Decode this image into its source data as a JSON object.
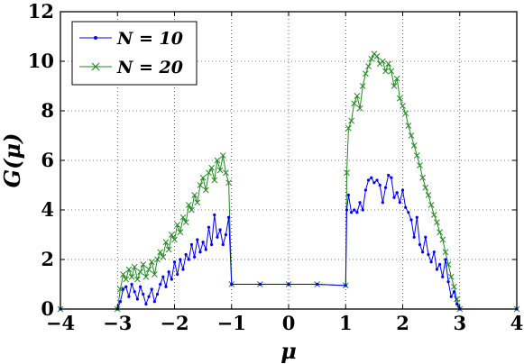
{
  "chart_data": {
    "type": "line",
    "xlabel": "μ",
    "ylabel": "G(μ)",
    "xlim": [
      -4,
      4
    ],
    "ylim": [
      0,
      12
    ],
    "xticks": [
      -4,
      -3,
      -2,
      -1,
      0,
      1,
      2,
      3,
      4
    ],
    "xtick_labels": [
      "−4",
      "−3",
      "−2",
      "−1",
      "0",
      "1",
      "2",
      "3",
      "4"
    ],
    "yticks": [
      0,
      2,
      4,
      6,
      8,
      10,
      12
    ],
    "ytick_labels": [
      "0",
      "2",
      "4",
      "6",
      "8",
      "10",
      "12"
    ],
    "grid": true,
    "legend_position": "top-left",
    "series": [
      {
        "name": "N = 10",
        "color": "#0000ff",
        "marker": "dot",
        "x": [
          -4.0,
          -3.0,
          -2.95,
          -2.9,
          -2.85,
          -2.8,
          -2.75,
          -2.7,
          -2.65,
          -2.6,
          -2.55,
          -2.5,
          -2.45,
          -2.4,
          -2.35,
          -2.3,
          -2.25,
          -2.2,
          -2.15,
          -2.1,
          -2.05,
          -2.0,
          -1.95,
          -1.9,
          -1.85,
          -1.8,
          -1.75,
          -1.7,
          -1.65,
          -1.6,
          -1.55,
          -1.5,
          -1.45,
          -1.4,
          -1.35,
          -1.3,
          -1.25,
          -1.2,
          -1.15,
          -1.1,
          -1.05,
          -1.0,
          -0.5,
          0.0,
          0.5,
          1.0,
          1.02,
          1.05,
          1.1,
          1.15,
          1.2,
          1.25,
          1.3,
          1.35,
          1.4,
          1.45,
          1.5,
          1.55,
          1.6,
          1.65,
          1.7,
          1.75,
          1.8,
          1.85,
          1.9,
          1.95,
          2.0,
          2.05,
          2.1,
          2.15,
          2.2,
          2.25,
          2.3,
          2.35,
          2.4,
          2.45,
          2.5,
          2.55,
          2.6,
          2.65,
          2.7,
          2.75,
          2.8,
          2.85,
          2.9,
          2.95,
          3.0,
          4.0
        ],
        "y": [
          0.0,
          0.0,
          0.3,
          0.8,
          0.9,
          0.5,
          1.0,
          0.7,
          0.4,
          0.9,
          0.6,
          0.2,
          0.5,
          0.8,
          0.3,
          0.6,
          1.0,
          1.3,
          0.9,
          1.5,
          1.2,
          1.9,
          1.4,
          2.0,
          1.6,
          2.2,
          2.0,
          2.6,
          2.1,
          2.8,
          2.3,
          2.7,
          2.4,
          3.3,
          2.6,
          3.8,
          2.9,
          3.2,
          2.6,
          3.0,
          3.7,
          1.0,
          1.0,
          1.0,
          1.0,
          0.95,
          4.0,
          4.6,
          3.9,
          4.0,
          3.9,
          4.3,
          4.0,
          4.8,
          5.2,
          5.3,
          5.1,
          5.2,
          5.0,
          4.3,
          4.9,
          5.4,
          5.3,
          4.5,
          4.7,
          4.3,
          4.8,
          4.1,
          3.9,
          3.6,
          2.9,
          3.7,
          2.6,
          2.3,
          2.9,
          2.2,
          1.9,
          2.3,
          1.6,
          1.8,
          1.3,
          2.0,
          1.1,
          0.5,
          0.7,
          0.2,
          0.0,
          0.0
        ]
      },
      {
        "name": "N = 20",
        "color": "#228b22",
        "marker": "cross",
        "x": [
          -4.0,
          -3.0,
          -2.95,
          -2.9,
          -2.85,
          -2.8,
          -2.75,
          -2.7,
          -2.65,
          -2.6,
          -2.55,
          -2.5,
          -2.45,
          -2.4,
          -2.35,
          -2.3,
          -2.25,
          -2.2,
          -2.15,
          -2.1,
          -2.05,
          -2.0,
          -1.95,
          -1.9,
          -1.85,
          -1.8,
          -1.75,
          -1.7,
          -1.65,
          -1.6,
          -1.55,
          -1.5,
          -1.45,
          -1.4,
          -1.35,
          -1.3,
          -1.25,
          -1.2,
          -1.15,
          -1.1,
          -1.05,
          -1.0,
          -0.5,
          0.0,
          0.5,
          1.0,
          1.02,
          1.05,
          1.1,
          1.15,
          1.2,
          1.25,
          1.3,
          1.35,
          1.4,
          1.45,
          1.5,
          1.55,
          1.6,
          1.65,
          1.7,
          1.75,
          1.8,
          1.85,
          1.9,
          1.95,
          2.0,
          2.05,
          2.1,
          2.15,
          2.2,
          2.25,
          2.3,
          2.35,
          2.4,
          2.45,
          2.5,
          2.55,
          2.6,
          2.65,
          2.7,
          2.75,
          2.8,
          2.85,
          2.9,
          2.95,
          3.0,
          4.0
        ],
        "y": [
          0.0,
          0.0,
          0.8,
          1.4,
          1.2,
          1.6,
          1.3,
          1.7,
          1.2,
          1.5,
          1.8,
          1.3,
          1.6,
          1.9,
          1.4,
          2.0,
          2.3,
          2.1,
          2.7,
          2.4,
          3.0,
          2.8,
          3.4,
          3.1,
          3.7,
          3.5,
          4.2,
          4.0,
          4.6,
          4.3,
          5.0,
          5.3,
          4.8,
          5.5,
          5.7,
          5.2,
          6.0,
          5.6,
          6.2,
          5.5,
          5.1,
          1.0,
          1.0,
          1.0,
          1.0,
          0.95,
          5.5,
          7.3,
          7.6,
          8.3,
          8.6,
          8.1,
          9.0,
          9.5,
          9.8,
          10.1,
          10.3,
          10.2,
          9.9,
          10.0,
          9.6,
          9.9,
          9.6,
          9.0,
          9.3,
          8.5,
          8.2,
          7.9,
          7.4,
          7.0,
          6.6,
          6.2,
          5.8,
          5.3,
          4.9,
          4.6,
          4.2,
          3.8,
          3.5,
          3.1,
          2.8,
          2.3,
          1.8,
          1.3,
          0.9,
          0.4,
          0.0,
          0.0
        ]
      }
    ]
  }
}
